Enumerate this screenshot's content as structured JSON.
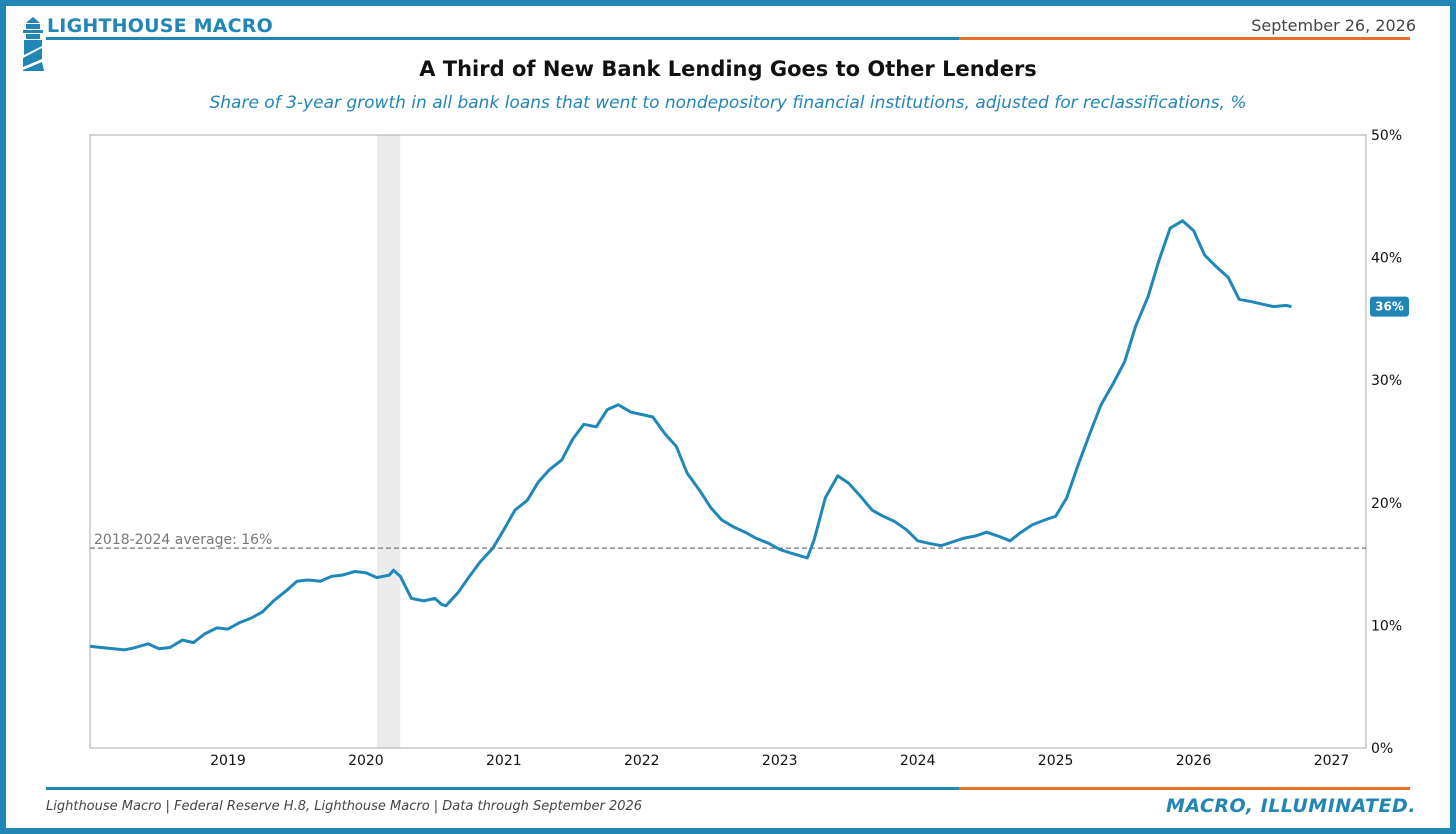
{
  "header": {
    "brand": "LIGHTHOUSE MACRO",
    "date": "September 26, 2026",
    "logo_icon": "lighthouse-icon"
  },
  "colors": {
    "brand_blue": "#2185b6",
    "accent_orange": "#e8702a",
    "line": "#1f88b8",
    "recession_band": "#ececec"
  },
  "footer": {
    "source": "Lighthouse Macro | Federal Reserve H.8, Lighthouse Macro | Data through September 2026",
    "tagline": "MACRO, ILLUMINATED."
  },
  "chart_data": {
    "type": "line",
    "title": "A Third of New Bank Lending Goes to Other Lenders",
    "subtitle": "Share of 3-year growth in all bank loans that went to nondepository financial institutions, adjusted for reclassifications, %",
    "x_tick_labels": [
      "2019",
      "2020",
      "2021",
      "2022",
      "2023",
      "2024",
      "2025",
      "2026",
      "2027"
    ],
    "x_ticks": [
      2019,
      2020,
      2021,
      2022,
      2023,
      2024,
      2025,
      2026,
      2027
    ],
    "xlim": [
      2018.0,
      2027.25
    ],
    "y_tick_labels": [
      "0%",
      "10%",
      "20%",
      "30%",
      "40%",
      "50%"
    ],
    "y_ticks": [
      0,
      10,
      20,
      30,
      40,
      50
    ],
    "ylim": [
      0,
      50
    ],
    "y_axis_side": "right",
    "grid": false,
    "shaded_band": {
      "x_start": 2020.08,
      "x_end": 2020.25
    },
    "reference_line": {
      "y": 16.3,
      "label": "2018-2024 average: 16%"
    },
    "last_value_label": "36%",
    "last_value": 36,
    "series": [
      {
        "x": [
          2018.0,
          2018.08,
          2018.17,
          2018.25,
          2018.33,
          2018.42,
          2018.5,
          2018.58,
          2018.67,
          2018.75,
          2018.83,
          2018.92,
          2019.0,
          2019.08,
          2019.17,
          2019.25,
          2019.33,
          2019.42,
          2019.5,
          2019.58,
          2019.67,
          2019.75,
          2019.83,
          2019.92,
          2020.0,
          2020.08,
          2020.17,
          2020.2,
          2020.25,
          2020.33,
          2020.42,
          2020.5,
          2020.55,
          2020.58,
          2020.67,
          2020.75,
          2020.83,
          2020.92,
          2021.0,
          2021.08,
          2021.17,
          2021.25,
          2021.33,
          2021.42,
          2021.5,
          2021.58,
          2021.67,
          2021.75,
          2021.83,
          2021.92,
          2022.0,
          2022.08,
          2022.17,
          2022.25,
          2022.33,
          2022.42,
          2022.5,
          2022.58,
          2022.67,
          2022.75,
          2022.83,
          2022.92,
          2023.0,
          2023.08,
          2023.17,
          2023.2,
          2023.25,
          2023.33,
          2023.42,
          2023.5,
          2023.58,
          2023.67,
          2023.75,
          2023.83,
          2023.92,
          2024.0,
          2024.08,
          2024.17,
          2024.25,
          2024.33,
          2024.42,
          2024.5,
          2024.58,
          2024.67,
          2024.75,
          2024.83,
          2024.92,
          2025.0,
          2025.08,
          2025.17,
          2025.25,
          2025.33,
          2025.42,
          2025.5,
          2025.58,
          2025.67,
          2025.75,
          2025.83,
          2025.92,
          2026.0,
          2026.08,
          2026.17,
          2026.25,
          2026.33,
          2026.42,
          2026.5,
          2026.58,
          2026.67,
          2026.71
        ],
        "y": [
          8.3,
          8.2,
          8.1,
          8.0,
          8.2,
          8.5,
          8.1,
          8.2,
          8.8,
          8.6,
          9.3,
          9.8,
          9.7,
          10.2,
          10.6,
          11.1,
          12.0,
          12.8,
          13.6,
          13.7,
          13.6,
          14.0,
          14.1,
          14.4,
          14.3,
          13.9,
          14.1,
          14.5,
          14.0,
          12.2,
          12.0,
          12.2,
          11.7,
          11.6,
          12.7,
          14.0,
          15.2,
          16.3,
          17.8,
          19.4,
          20.2,
          21.7,
          22.7,
          23.5,
          25.2,
          26.4,
          26.2,
          27.6,
          28.0,
          27.4,
          27.2,
          27.0,
          25.6,
          24.6,
          22.4,
          21.0,
          19.6,
          18.6,
          18.0,
          17.6,
          17.1,
          16.7,
          16.2,
          15.9,
          15.6,
          15.5,
          17.0,
          20.4,
          22.2,
          21.6,
          20.6,
          19.4,
          18.9,
          18.5,
          17.8,
          16.9,
          16.7,
          16.5,
          16.8,
          17.1,
          17.3,
          17.6,
          17.3,
          16.9,
          17.6,
          18.2,
          18.6,
          18.9,
          20.4,
          23.3,
          25.7,
          28.0,
          29.8,
          31.5,
          34.4,
          36.8,
          39.8,
          42.4,
          43.0,
          42.2,
          40.2,
          39.2,
          38.4,
          36.6,
          36.4,
          36.2,
          36.0,
          36.1,
          36.0
        ]
      }
    ]
  }
}
